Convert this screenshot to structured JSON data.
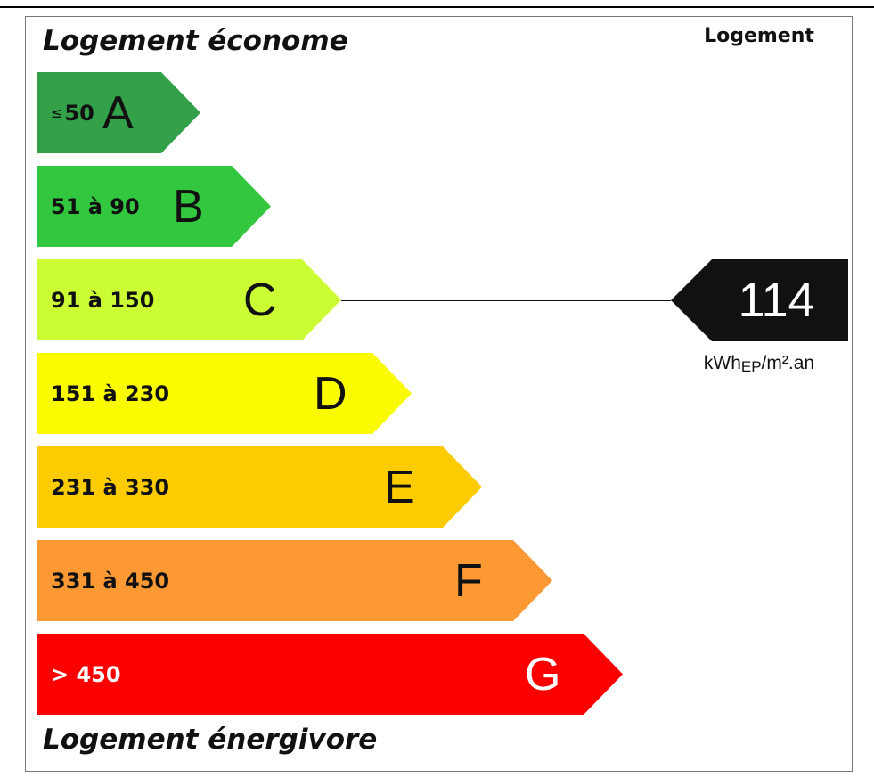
{
  "labels": {
    "top": "Logement économe",
    "bottom": "Logement énergivore",
    "column_header": "Logement"
  },
  "chart_data": {
    "type": "bar",
    "classes": [
      {
        "letter": "A",
        "range_prefix": "≤",
        "range": "50",
        "color": "#33a04a"
      },
      {
        "letter": "B",
        "range_prefix": "",
        "range": "51 à 90",
        "color": "#33c73f"
      },
      {
        "letter": "C",
        "range_prefix": "",
        "range": "91 à 150",
        "color": "#cbfc34"
      },
      {
        "letter": "D",
        "range_prefix": "",
        "range": "151 à 230",
        "color": "#fbfb00"
      },
      {
        "letter": "E",
        "range_prefix": "",
        "range": "231 à 330",
        "color": "#fccc00"
      },
      {
        "letter": "F",
        "range_prefix": "",
        "range": "331 à 450",
        "color": "#fc9935"
      },
      {
        "letter": "G",
        "range_prefix": "",
        "range": "> 450",
        "color": "#fc0000"
      }
    ],
    "value": 114,
    "value_class": "C",
    "value_color": "#111111",
    "unit_main": "kWh",
    "unit_sub": "EP",
    "unit_rest": "/m².an"
  }
}
